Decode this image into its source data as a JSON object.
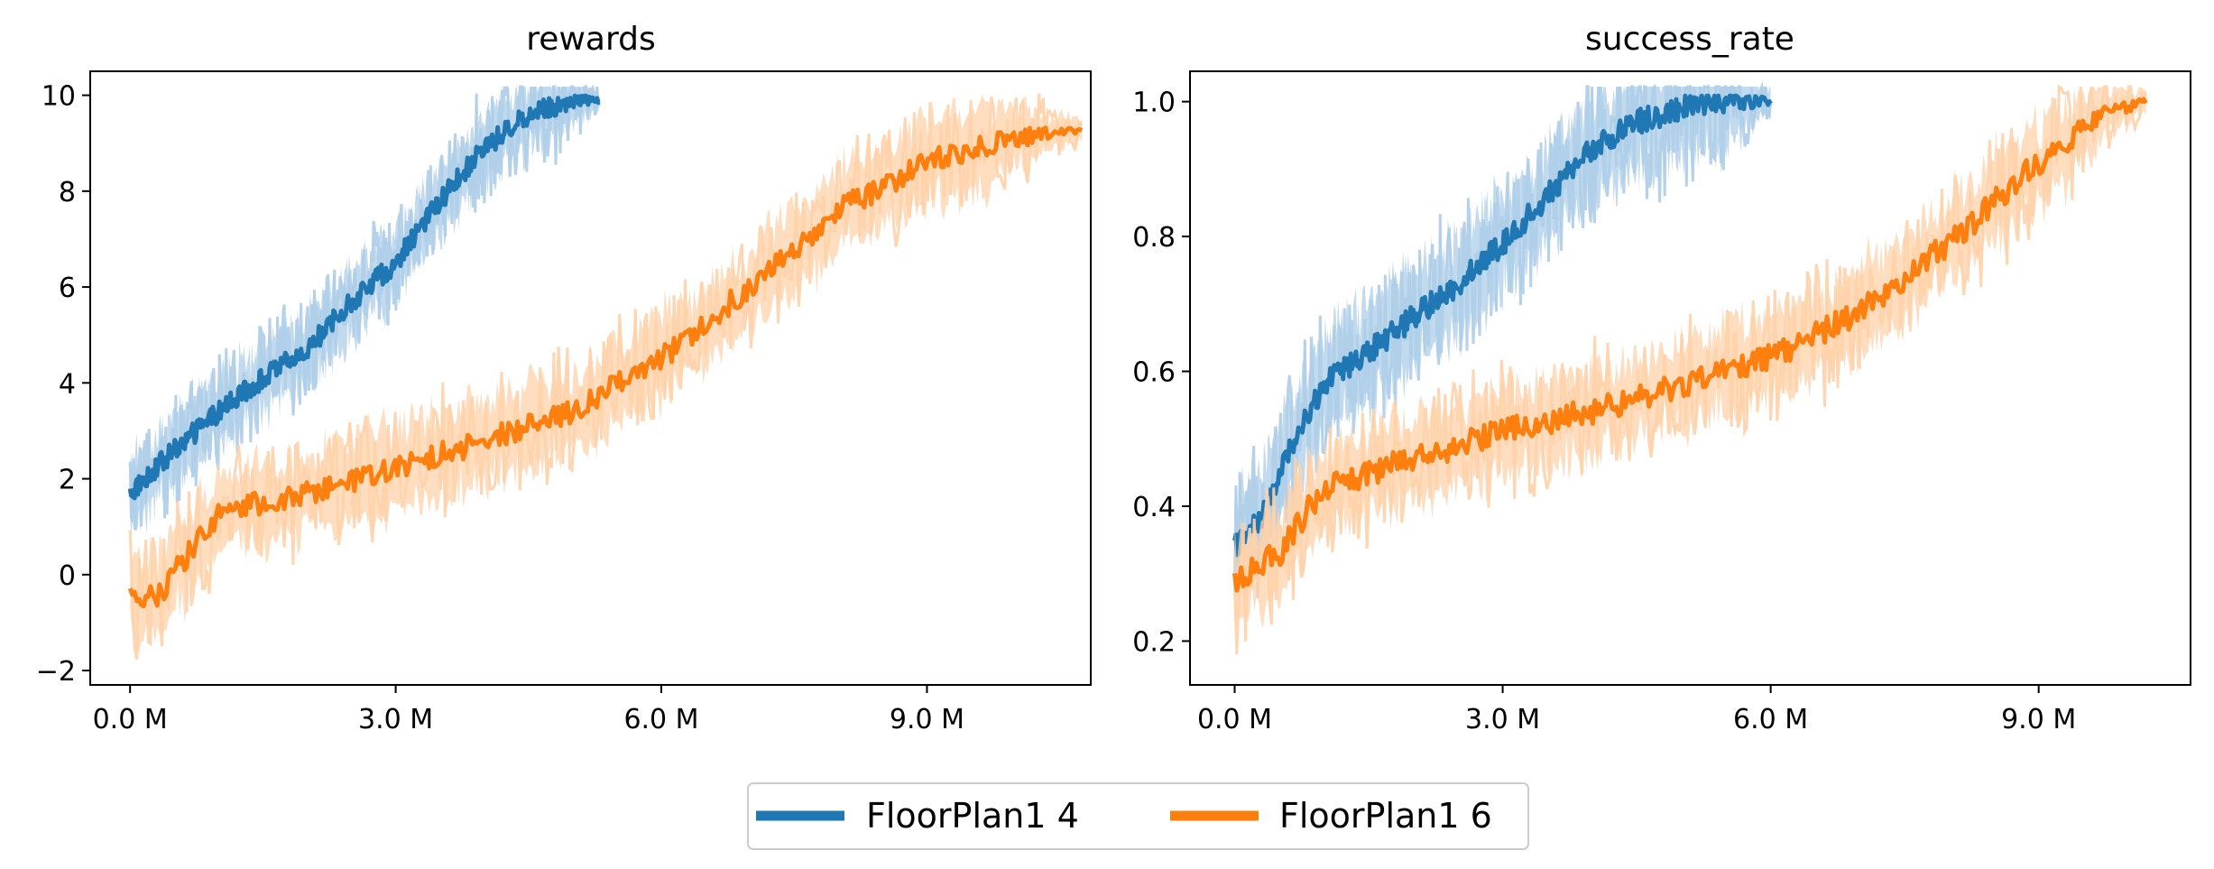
{
  "chart_data": [
    {
      "type": "line",
      "title": "rewards",
      "xlabel": "",
      "ylabel": "",
      "xlim": [
        -0.45,
        10.85
      ],
      "ylim": [
        -2.3,
        10.5
      ],
      "xticks": [
        0,
        3,
        6,
        9
      ],
      "xtick_labels": [
        "0.0 M",
        "3.0 M",
        "6.0 M",
        "9.0 M"
      ],
      "yticks": [
        -2,
        0,
        2,
        4,
        6,
        8,
        10
      ],
      "ytick_labels": [
        "−2",
        "0",
        "2",
        "4",
        "6",
        "8",
        "10"
      ],
      "series": [
        {
          "name": "FloorPlan1 4",
          "color": "#1f77b4",
          "band_color": "#aecde8",
          "x": [
            0,
            0.5,
            1,
            1.5,
            2,
            2.5,
            3,
            3.5,
            4,
            4.5,
            5,
            5.3
          ],
          "y": [
            1.7,
            2.6,
            3.4,
            4.1,
            4.7,
            5.7,
            6.5,
            7.8,
            8.9,
            9.6,
            9.9,
            9.9
          ],
          "band_halfwidth": 0.7,
          "noise": 0.22
        },
        {
          "name": "FloorPlan1 6",
          "color": "#ff7f0e",
          "band_color": "#ffd2a8",
          "x": [
            0,
            0.3,
            0.6,
            1,
            2,
            3,
            4,
            5,
            6,
            7,
            8,
            9,
            10,
            10.75
          ],
          "y": [
            -0.4,
            -0.5,
            0.3,
            1.3,
            1.7,
            2.2,
            2.8,
            3.4,
            4.5,
            6.0,
            7.6,
            8.6,
            9.1,
            9.3
          ],
          "band_halfwidth": 0.8,
          "noise": 0.25
        }
      ]
    },
    {
      "type": "line",
      "title": "success_rate",
      "xlabel": "",
      "ylabel": "",
      "xlim": [
        -0.5,
        10.7
      ],
      "ylim": [
        0.135,
        1.045
      ],
      "xticks": [
        0,
        3,
        6,
        9
      ],
      "xtick_labels": [
        "0.0 M",
        "3.0 M",
        "6.0 M",
        "9.0 M"
      ],
      "yticks": [
        0.2,
        0.4,
        0.6,
        0.8,
        1.0
      ],
      "ytick_labels": [
        "0.2",
        "0.4",
        "0.6",
        "0.8",
        "1.0"
      ],
      "series": [
        {
          "name": "FloorPlan1 4",
          "color": "#1f77b4",
          "band_color": "#aecde8",
          "x": [
            0,
            0.3,
            0.6,
            1,
            1.5,
            2,
            2.5,
            3,
            3.5,
            4,
            4.5,
            5,
            5.5,
            6
          ],
          "y": [
            0.34,
            0.38,
            0.48,
            0.58,
            0.63,
            0.68,
            0.73,
            0.79,
            0.86,
            0.93,
            0.97,
            0.99,
            1.0,
            1.0
          ],
          "band_halfwidth": 0.07,
          "noise": 0.018
        },
        {
          "name": "FloorPlan1 6",
          "color": "#ff7f0e",
          "band_color": "#ffd2a8",
          "x": [
            0,
            0.5,
            1,
            2,
            3,
            4,
            5,
            6,
            7,
            8,
            9,
            9.7,
            10.2
          ],
          "y": [
            0.29,
            0.33,
            0.43,
            0.47,
            0.51,
            0.54,
            0.58,
            0.62,
            0.69,
            0.79,
            0.91,
            0.98,
            1.0
          ],
          "band_halfwidth": 0.06,
          "noise": 0.02
        }
      ]
    }
  ],
  "legend": {
    "entries": [
      {
        "label": "FloorPlan1 4",
        "color": "#1f77b4"
      },
      {
        "label": "FloorPlan1 6",
        "color": "#ff7f0e"
      }
    ]
  }
}
